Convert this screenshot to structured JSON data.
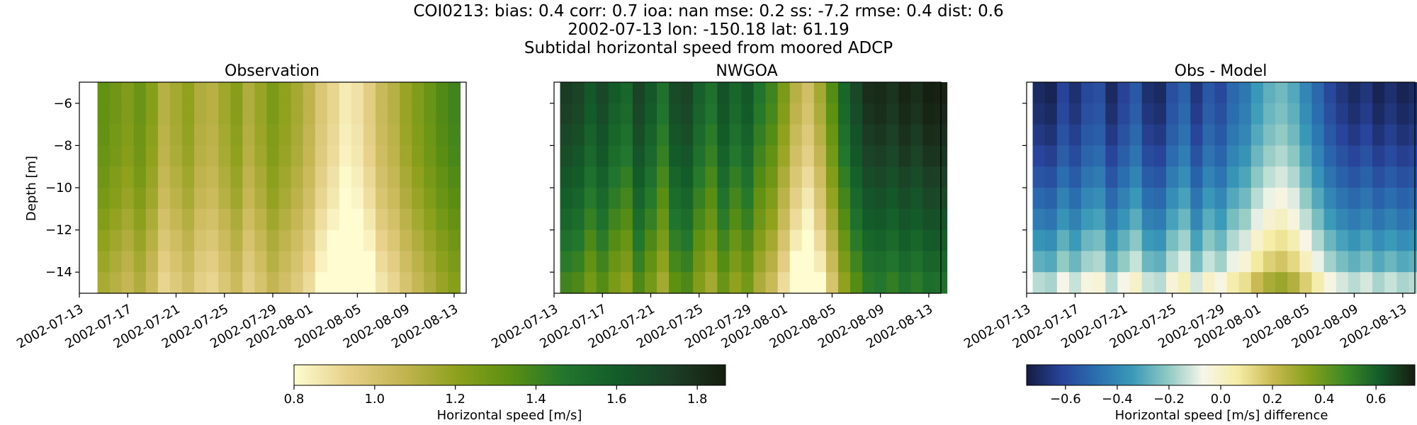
{
  "figure": {
    "suptitle_lines": [
      "COI0213: bias: 0.4  corr: 0.7  ioa: nan  mse: 0.2  ss: -7.2  rmse: 0.4  dist: 0.6",
      "2002-07-13 lon: -150.18 lat: 61.19",
      "Subtidal horizontal speed from moored ADCP"
    ]
  },
  "colormaps": {
    "speed": [
      "#fefcd0",
      "#e6d089",
      "#c4b552",
      "#8ea11d",
      "#5c8f12",
      "#22762d",
      "#135c2a",
      "#1c3f26",
      "#161d10"
    ],
    "diff": [
      "#141c40",
      "#28449a",
      "#2b6fb0",
      "#3a9ab8",
      "#8ec9c3",
      "#f6f6ea",
      "#f5eca4",
      "#c8b850",
      "#87a01c",
      "#3e8a25",
      "#135c2a",
      "#161d10"
    ]
  },
  "chart_data": [
    {
      "type": "heatmap",
      "title": "Observation",
      "xlabel": "",
      "ylabel": "Depth [m]",
      "colormap": "speed",
      "vmin": 0.8,
      "vmax": 1.87,
      "x_dates": [
        "2002-07-15",
        "2002-07-16",
        "2002-07-17",
        "2002-07-18",
        "2002-07-19",
        "2002-07-20",
        "2002-07-21",
        "2002-07-22",
        "2002-07-23",
        "2002-07-24",
        "2002-07-25",
        "2002-07-26",
        "2002-07-27",
        "2002-07-28",
        "2002-07-29",
        "2002-07-30",
        "2002-07-31",
        "2002-08-01",
        "2002-08-02",
        "2002-08-03",
        "2002-08-04",
        "2002-08-05",
        "2002-08-06",
        "2002-08-07",
        "2002-08-08",
        "2002-08-09",
        "2002-08-10",
        "2002-08-11",
        "2002-08-12",
        "2002-08-13"
      ],
      "depths": [
        -5.5,
        -6.5,
        -7.5,
        -8.5,
        -9.5,
        -10.5,
        -11.5,
        -12.5,
        -13.5,
        -14.5
      ],
      "xlim": [
        "2002-07-13",
        "2002-08-14"
      ],
      "ylim": [
        -15,
        -5
      ],
      "surface_values": [
        1.32,
        1.28,
        1.24,
        1.3,
        1.22,
        1.1,
        1.15,
        1.2,
        1.12,
        1.1,
        1.16,
        1.22,
        1.12,
        1.18,
        1.25,
        1.2,
        1.15,
        1.08,
        0.98,
        0.92,
        0.85,
        0.88,
        0.95,
        1.05,
        1.1,
        1.18,
        1.24,
        1.3,
        1.36,
        1.4
      ],
      "depth_decrease": [
        0.0,
        0.0,
        0.01,
        0.02,
        0.04,
        0.06,
        0.09,
        0.12,
        0.15,
        0.18
      ],
      "xticks": [
        "2002-07-13",
        "2002-07-17",
        "2002-07-21",
        "2002-07-25",
        "2002-07-29",
        "2002-08-01",
        "2002-08-05",
        "2002-08-09",
        "2002-08-13"
      ],
      "yticks": [
        -6,
        -8,
        -10,
        -12,
        -14
      ]
    },
    {
      "type": "heatmap",
      "title": "NWGOA",
      "xlabel": "",
      "ylabel": "",
      "colormap": "speed",
      "vmin": 0.8,
      "vmax": 1.87,
      "x_dates": [
        "2002-07-14",
        "2002-07-15",
        "2002-07-16",
        "2002-07-17",
        "2002-07-18",
        "2002-07-19",
        "2002-07-20",
        "2002-07-21",
        "2002-07-22",
        "2002-07-23",
        "2002-07-24",
        "2002-07-25",
        "2002-07-26",
        "2002-07-27",
        "2002-07-28",
        "2002-07-29",
        "2002-07-30",
        "2002-07-31",
        "2002-08-01",
        "2002-08-02",
        "2002-08-03",
        "2002-08-04",
        "2002-08-05",
        "2002-08-06",
        "2002-08-07",
        "2002-08-08",
        "2002-08-09",
        "2002-08-10",
        "2002-08-11",
        "2002-08-12",
        "2002-08-13",
        "2002-08-14"
      ],
      "depths": [
        -5.5,
        -6.5,
        -7.5,
        -8.5,
        -9.5,
        -10.5,
        -11.5,
        -12.5,
        -13.5,
        -14.5
      ],
      "xlim": [
        "2002-07-13",
        "2002-08-14"
      ],
      "ylim": [
        -15,
        -5
      ],
      "surface_values": [
        1.75,
        1.72,
        1.62,
        1.7,
        1.6,
        1.55,
        1.72,
        1.62,
        1.5,
        1.68,
        1.72,
        1.58,
        1.5,
        1.65,
        1.55,
        1.62,
        1.48,
        1.4,
        1.25,
        1.1,
        1.02,
        1.15,
        1.35,
        1.55,
        1.7,
        1.8,
        1.82,
        1.78,
        1.84,
        1.8,
        1.86,
        1.85
      ],
      "depth_decrease": [
        0.0,
        0.02,
        0.05,
        0.08,
        0.12,
        0.16,
        0.2,
        0.25,
        0.3,
        0.35
      ],
      "xticks": [
        "2002-07-13",
        "2002-07-17",
        "2002-07-21",
        "2002-07-25",
        "2002-07-29",
        "2002-08-01",
        "2002-08-05",
        "2002-08-09",
        "2002-08-13"
      ],
      "yticks": [
        -6,
        -8,
        -10,
        -12,
        -14
      ]
    },
    {
      "type": "heatmap",
      "title": "Obs - Model",
      "xlabel": "",
      "ylabel": "",
      "colormap": "diff",
      "vmin": -0.75,
      "vmax": 0.75,
      "x_dates": [
        "2002-07-14",
        "2002-07-15",
        "2002-07-16",
        "2002-07-17",
        "2002-07-18",
        "2002-07-19",
        "2002-07-20",
        "2002-07-21",
        "2002-07-22",
        "2002-07-23",
        "2002-07-24",
        "2002-07-25",
        "2002-07-26",
        "2002-07-27",
        "2002-07-28",
        "2002-07-29",
        "2002-07-30",
        "2002-07-31",
        "2002-08-01",
        "2002-08-02",
        "2002-08-03",
        "2002-08-04",
        "2002-08-05",
        "2002-08-06",
        "2002-08-07",
        "2002-08-08",
        "2002-08-09",
        "2002-08-10",
        "2002-08-11",
        "2002-08-12",
        "2002-08-13",
        "2002-08-14"
      ],
      "depths": [
        -5.5,
        -6.5,
        -7.5,
        -8.5,
        -9.5,
        -10.5,
        -11.5,
        -12.5,
        -13.5,
        -14.5
      ],
      "xlim": [
        "2002-07-13",
        "2002-08-14"
      ],
      "ylim": [
        -15,
        -5
      ],
      "surface_values": [
        -0.7,
        -0.72,
        -0.62,
        -0.68,
        -0.6,
        -0.58,
        -0.7,
        -0.62,
        -0.55,
        -0.68,
        -0.7,
        -0.58,
        -0.52,
        -0.66,
        -0.55,
        -0.6,
        -0.5,
        -0.45,
        -0.35,
        -0.28,
        -0.25,
        -0.3,
        -0.4,
        -0.5,
        -0.6,
        -0.66,
        -0.7,
        -0.66,
        -0.72,
        -0.68,
        -0.72,
        -0.7
      ],
      "depth_increase": [
        0.0,
        0.02,
        0.05,
        0.09,
        0.14,
        0.2,
        0.26,
        0.34,
        0.42,
        0.55
      ],
      "xticks": [
        "2002-07-13",
        "2002-07-17",
        "2002-07-21",
        "2002-07-25",
        "2002-07-29",
        "2002-08-01",
        "2002-08-05",
        "2002-08-09",
        "2002-08-13"
      ],
      "yticks": [
        -6,
        -8,
        -10,
        -12,
        -14
      ]
    }
  ],
  "colorbars": [
    {
      "colormap": "speed",
      "vmin": 0.8,
      "vmax": 1.87,
      "ticks": [
        0.8,
        1.0,
        1.2,
        1.4,
        1.6,
        1.8
      ],
      "tick_labels": [
        "0.8",
        "1.0",
        "1.2",
        "1.4",
        "1.6",
        "1.8"
      ],
      "label": "Horizontal speed [m/s]"
    },
    {
      "colormap": "diff",
      "vmin": -0.75,
      "vmax": 0.75,
      "ticks": [
        -0.6,
        -0.4,
        -0.2,
        0.0,
        0.2,
        0.4,
        0.6
      ],
      "tick_labels": [
        "−0.6",
        "−0.4",
        "−0.2",
        "0.0",
        "0.2",
        "0.4",
        "0.6"
      ],
      "label": "Horizontal speed [m/s] difference"
    }
  ]
}
